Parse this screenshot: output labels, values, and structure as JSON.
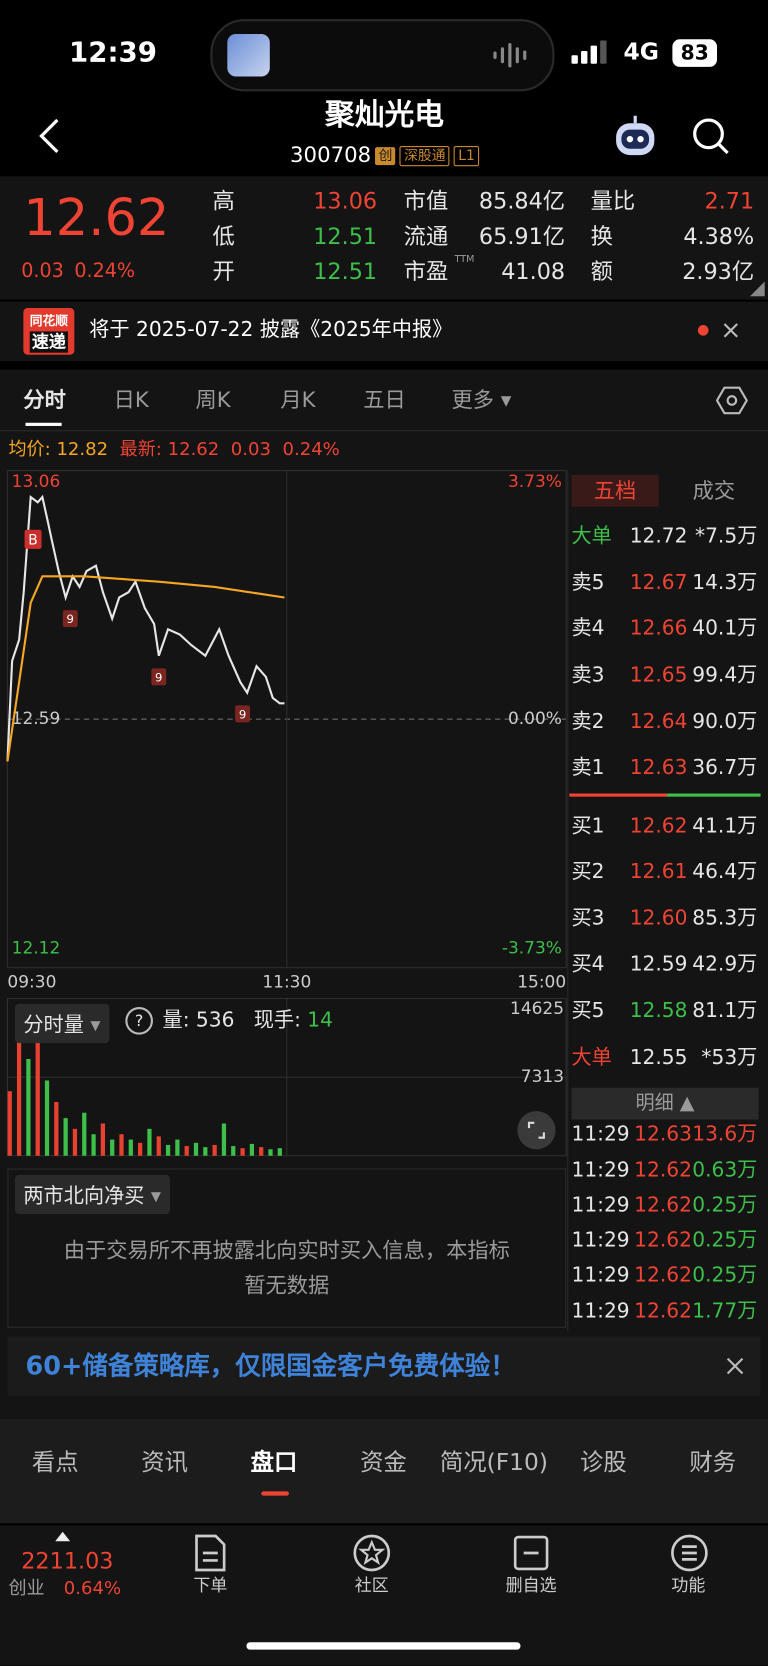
{
  "status_bar": {
    "time": "12:39",
    "network": "4G",
    "battery": "83"
  },
  "header": {
    "title": "聚灿光电",
    "code": "300708",
    "badges": [
      "创",
      "深股通",
      "L1"
    ]
  },
  "quote": {
    "price": "12.62",
    "change": "0.03",
    "change_pct": "0.24%",
    "pe_sup": "TTM",
    "stats": [
      [
        "高",
        "13.06"
      ],
      [
        "低",
        "12.51"
      ],
      [
        "开",
        "12.51"
      ],
      [
        "市值",
        "85.84亿"
      ],
      [
        "流通",
        "65.91亿"
      ],
      [
        "市盈",
        "41.08"
      ],
      [
        "量比",
        "2.71"
      ],
      [
        "换",
        "4.38%"
      ],
      [
        "额",
        "2.93亿"
      ]
    ]
  },
  "notice": {
    "logo_top": "同花顺",
    "logo_bottom": "速递",
    "text": "将于 2025-07-22 披露《2025年中报》"
  },
  "period_tabs": [
    "分时",
    "日K",
    "周K",
    "月K",
    "五日",
    "更多"
  ],
  "legend": {
    "avg_label": "均价:",
    "avg": "12.82",
    "latest_label": "最新:",
    "latest": "12.62",
    "change": "0.03",
    "change_pct": "0.24%"
  },
  "chart_data": [
    {
      "type": "line",
      "xlim": [
        0,
        240
      ],
      "xticks": [
        {
          "value": 0,
          "label": "09:30"
        },
        {
          "value": 120,
          "label": "11:30"
        },
        {
          "value": 240,
          "label": "15:00"
        }
      ],
      "ylim": [
        12.12,
        13.06
      ],
      "yticks": [
        13.06,
        12.59,
        12.12
      ],
      "y2lim": [
        -3.73,
        3.73
      ],
      "y2ticks": [
        {
          "value": 3.73,
          "label": "3.73%"
        },
        {
          "value": 0,
          "label": "0.00%"
        },
        {
          "value": -3.73,
          "label": "-3.73%"
        }
      ],
      "series": [
        {
          "color": "#e6e6e6",
          "x": [
            0,
            2,
            5,
            7,
            10,
            13,
            15,
            17,
            19,
            22,
            25,
            28,
            31,
            34,
            38,
            41,
            45,
            48,
            52,
            55,
            59,
            63,
            65,
            69,
            74,
            79,
            85,
            91,
            95,
            100,
            103,
            107,
            111,
            114,
            117,
            119
          ],
          "values": [
            12.51,
            12.7,
            12.74,
            12.83,
            13.01,
            13.0,
            13.01,
            12.97,
            12.93,
            12.87,
            12.82,
            12.86,
            12.84,
            12.87,
            12.88,
            12.83,
            12.78,
            12.82,
            12.83,
            12.85,
            12.8,
            12.77,
            12.71,
            12.76,
            12.75,
            12.73,
            12.71,
            12.76,
            12.71,
            12.66,
            12.64,
            12.69,
            12.67,
            12.63,
            12.62,
            12.62
          ]
        },
        {
          "color": "#f5a623",
          "x": [
            0,
            5,
            10,
            15,
            33,
            65,
            89,
            119
          ],
          "values": [
            12.51,
            12.66,
            12.81,
            12.86,
            12.86,
            12.85,
            12.84,
            12.82
          ]
        }
      ],
      "annotations": [
        {
          "x": 11,
          "y": 12.93,
          "label": "B"
        },
        {
          "x": 27,
          "y": 12.78,
          "label": "9"
        },
        {
          "x": 65,
          "y": 12.67,
          "label": "9"
        },
        {
          "x": 101,
          "y": 12.6,
          "label": "9"
        }
      ]
    },
    {
      "type": "bar",
      "xlim": [
        0,
        240
      ],
      "ylim": [
        0,
        14625
      ],
      "yticks": [
        14625,
        7313
      ],
      "x": [
        1,
        5,
        9,
        13,
        17,
        21,
        25,
        29,
        33,
        37,
        41,
        45,
        49,
        53,
        57,
        61,
        65,
        69,
        73,
        77,
        81,
        85,
        89,
        93,
        97,
        101,
        105,
        109,
        113,
        117
      ],
      "values": [
        6000,
        14000,
        9000,
        13000,
        7000,
        5000,
        3500,
        2500,
        4000,
        2000,
        3000,
        1500,
        2000,
        1500,
        1200,
        2500,
        1800,
        1000,
        1500,
        900,
        1200,
        800,
        1000,
        3000,
        900,
        700,
        1100,
        800,
        600,
        700
      ],
      "colors": [
        "#e8412f",
        "#e8412f",
        "#3ebf4a",
        "#e8412f",
        "#3ebf4a",
        "#e8412f",
        "#3ebf4a",
        "#e8412f",
        "#3ebf4a",
        "#3ebf4a",
        "#e8412f",
        "#3ebf4a",
        "#e8412f",
        "#3ebf4a",
        "#e8412f",
        "#3ebf4a",
        "#e8412f",
        "#3ebf4a",
        "#3ebf4a",
        "#e8412f",
        "#3ebf4a",
        "#3ebf4a",
        "#e8412f",
        "#3ebf4a",
        "#3ebf4a",
        "#e8412f",
        "#3ebf4a",
        "#e8412f",
        "#3ebf4a",
        "#3ebf4a"
      ]
    }
  ],
  "volume_panel": {
    "selector": "分时量",
    "help": "?",
    "vol_label": "量:",
    "vol": "536",
    "hand_label": "现手:",
    "hand": "14"
  },
  "north_panel": {
    "selector": "两市北向净买",
    "message": [
      "由于交易所不再披露北向实时买入信息，本指标",
      "暂无数据"
    ]
  },
  "order_book": {
    "tabs": [
      "五档",
      "成交"
    ],
    "prev_close": "12.59",
    "rows": [
      [
        "大单",
        "12.72",
        "*7.5万"
      ],
      [
        "卖5",
        "12.67",
        "14.3万"
      ],
      [
        "卖4",
        "12.66",
        "40.1万"
      ],
      [
        "卖3",
        "12.65",
        "99.4万"
      ],
      [
        "卖2",
        "12.64",
        "90.0万"
      ],
      [
        "卖1",
        "12.63",
        "36.7万"
      ],
      [
        "买1",
        "12.62",
        "41.1万"
      ],
      [
        "买2",
        "12.61",
        "46.4万"
      ],
      [
        "买3",
        "12.60",
        "85.3万"
      ],
      [
        "买4",
        "12.59",
        "42.9万"
      ],
      [
        "买5",
        "12.58",
        "81.1万"
      ],
      [
        "大单",
        "12.55",
        "*53万"
      ]
    ]
  },
  "trades": {
    "title": "明细",
    "rows": [
      [
        "11:29",
        "12.63",
        "13.6万"
      ],
      [
        "11:29",
        "12.62",
        "0.63万"
      ],
      [
        "11:29",
        "12.62",
        "0.25万"
      ],
      [
        "11:29",
        "12.62",
        "0.25万"
      ],
      [
        "11:29",
        "12.62",
        "0.25万"
      ],
      [
        "11:29",
        "12.62",
        "1.77万"
      ]
    ]
  },
  "banner": {
    "text": "60+储备策略库，仅限国金客户免费体验！"
  },
  "section_tabs": [
    "看点",
    "资讯",
    "盘口",
    "资金",
    "简况(F10)",
    "诊股",
    "财务"
  ],
  "bottom_nav": {
    "index_value": "2211.03",
    "index_name": "创业",
    "index_pct": "0.64%",
    "items": [
      "下单",
      "社区",
      "删自选",
      "功能"
    ]
  }
}
